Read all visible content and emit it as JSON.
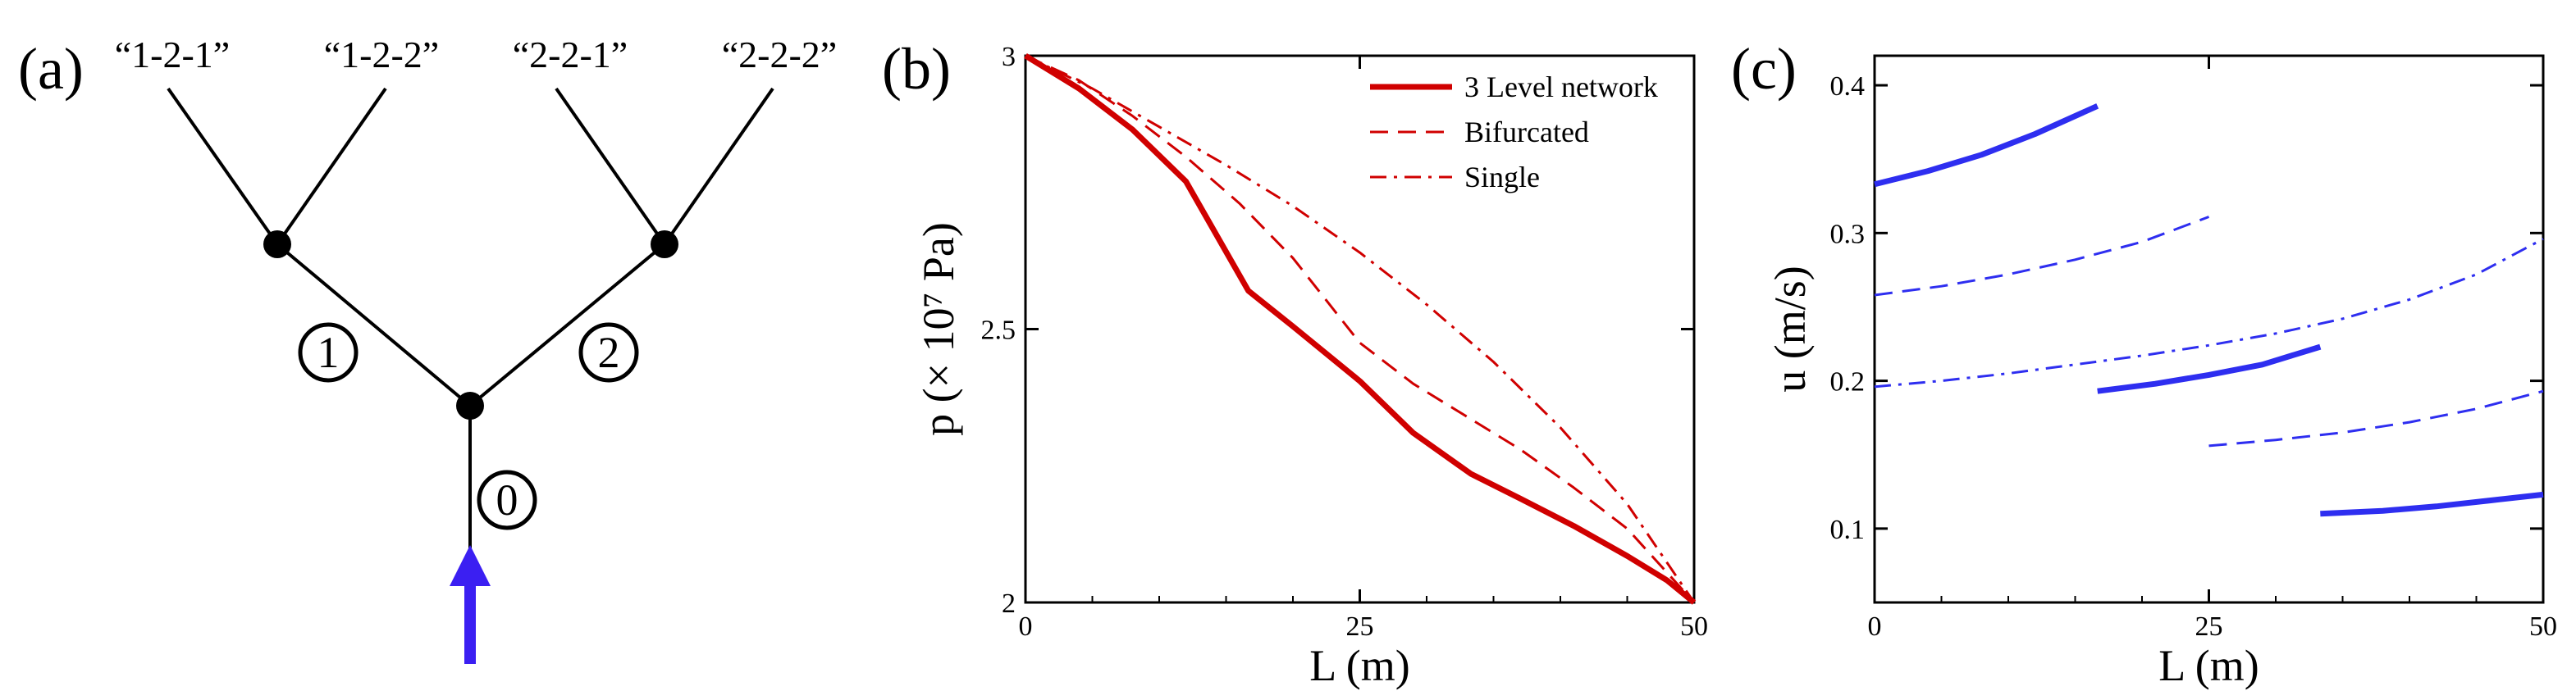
{
  "panels": {
    "a": {
      "label": "(a)",
      "outlet_labels": [
        "“1-2-1”",
        "“1-2-2”",
        "“2-2-1”",
        "“2-2-2”"
      ],
      "branch_labels": [
        "0",
        "1",
        "2"
      ],
      "colors": {
        "line": "#000000",
        "arrow": "#3b1ff2"
      }
    },
    "b": {
      "label": "(b)"
    },
    "c": {
      "label": "(c)"
    }
  },
  "chart_data": [
    {
      "id": "b",
      "type": "line",
      "xlabel": "L (m)",
      "ylabel": "p (× 10⁷ Pa)",
      "xlim": [
        0,
        50
      ],
      "ylim": [
        2,
        3
      ],
      "xticks": [
        0,
        25,
        50
      ],
      "yticks": [
        2,
        2.5,
        3
      ],
      "xtick_labels": [
        "0",
        "25",
        "50"
      ],
      "ytick_labels": [
        "2",
        "2.5",
        "3"
      ],
      "legend_position": "top-right",
      "series": [
        {
          "name": "3 Level network",
          "style": "solid",
          "color": "#d00000",
          "x": [
            0,
            4,
            8,
            12,
            16.67,
            20,
            25,
            29,
            33.33,
            37,
            41,
            45,
            48,
            50
          ],
          "y": [
            3,
            2.94,
            2.865,
            2.77,
            2.57,
            2.505,
            2.405,
            2.31,
            2.235,
            2.19,
            2.14,
            2.085,
            2.04,
            2
          ]
        },
        {
          "name": "Bifurcated",
          "style": "dashed",
          "color": "#d00000",
          "x": [
            0,
            4,
            8,
            12,
            16,
            20,
            25,
            29,
            33,
            37,
            41,
            45,
            50
          ],
          "y": [
            3,
            2.955,
            2.89,
            2.815,
            2.73,
            2.63,
            2.475,
            2.4,
            2.34,
            2.28,
            2.21,
            2.135,
            2
          ]
        },
        {
          "name": "Single",
          "style": "dashdot",
          "color": "#d00000",
          "x": [
            0,
            5,
            10,
            15,
            20,
            25,
            30,
            35,
            40,
            45,
            50
          ],
          "y": [
            3,
            2.94,
            2.87,
            2.8,
            2.725,
            2.64,
            2.545,
            2.44,
            2.32,
            2.18,
            2
          ]
        }
      ]
    },
    {
      "id": "c",
      "type": "line",
      "xlabel": "L (m)",
      "ylabel": "u (m/s)",
      "xlim": [
        0,
        50
      ],
      "ylim": [
        0.05,
        0.42
      ],
      "xticks": [
        0,
        25,
        50
      ],
      "yticks": [
        0.1,
        0.2,
        0.3,
        0.4
      ],
      "xtick_labels": [
        "0",
        "25",
        "50"
      ],
      "ytick_labels": [
        "0.1",
        "0.2",
        "0.3",
        "0.4"
      ],
      "series": [
        {
          "name": "3 Level network segment 0",
          "style": "solid",
          "color": "#2e2ef0",
          "x": [
            0,
            4,
            8,
            12,
            16.67
          ],
          "y": [
            0.333,
            0.342,
            0.353,
            0.367,
            0.386
          ]
        },
        {
          "name": "3 Level network segment 1",
          "style": "solid",
          "color": "#2e2ef0",
          "x": [
            16.67,
            21,
            25,
            29,
            33.33
          ],
          "y": [
            0.193,
            0.198,
            0.204,
            0.211,
            0.223
          ]
        },
        {
          "name": "3 Level network segment 2",
          "style": "solid",
          "color": "#2e2ef0",
          "x": [
            33.33,
            38,
            42,
            46,
            50
          ],
          "y": [
            0.11,
            0.112,
            0.115,
            0.119,
            0.123
          ]
        },
        {
          "name": "Bifurcated segment 0",
          "style": "dashed",
          "color": "#2e2ef0",
          "x": [
            0,
            5,
            10,
            15,
            20,
            25
          ],
          "y": [
            0.258,
            0.264,
            0.272,
            0.282,
            0.294,
            0.311
          ]
        },
        {
          "name": "Bifurcated segment 1",
          "style": "dashed",
          "color": "#2e2ef0",
          "x": [
            25,
            30,
            35,
            40,
            45,
            50
          ],
          "y": [
            0.156,
            0.16,
            0.165,
            0.172,
            0.181,
            0.193
          ]
        },
        {
          "name": "Single",
          "style": "dashdot",
          "color": "#2e2ef0",
          "x": [
            0,
            5,
            10,
            15,
            20,
            25,
            30,
            35,
            40,
            45,
            50
          ],
          "y": [
            0.196,
            0.2,
            0.205,
            0.211,
            0.217,
            0.224,
            0.232,
            0.242,
            0.255,
            0.272,
            0.296
          ]
        }
      ]
    }
  ]
}
